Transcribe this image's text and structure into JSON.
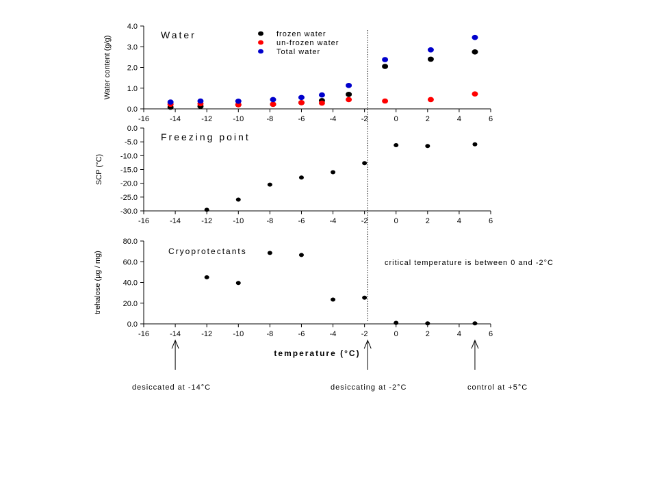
{
  "chart_data": [
    {
      "type": "scatter",
      "title": "Water",
      "ylabel": "Water content (g/g)",
      "xlim": [
        -16,
        6
      ],
      "ylim": [
        0,
        4
      ],
      "x_ticks": [
        "-16",
        "-14",
        "-12",
        "-10",
        "-8",
        "-6",
        "-4",
        "-2",
        "0",
        "2",
        "4",
        "6"
      ],
      "y_ticks": [
        "0.0",
        "1.0",
        "2.0",
        "3.0",
        "4.0"
      ],
      "legend_position": "top-center",
      "series": [
        {
          "name": "frozen water",
          "color": "#000000",
          "x": [
            -14.3,
            -12.4,
            -10,
            -7.8,
            -6,
            -4.7,
            -3,
            -0.7,
            2.2,
            5
          ],
          "y": [
            0.08,
            0.12,
            0.2,
            0.22,
            0.3,
            0.4,
            0.7,
            2.05,
            2.4,
            2.75
          ]
        },
        {
          "name": "un-frozen water",
          "color": "#ff0000",
          "x": [
            -14.3,
            -12.4,
            -10,
            -7.8,
            -6,
            -4.7,
            -3,
            -0.7,
            2.2,
            5
          ],
          "y": [
            0.22,
            0.25,
            0.2,
            0.22,
            0.3,
            0.28,
            0.45,
            0.38,
            0.45,
            0.72
          ]
        },
        {
          "name": "Total water",
          "color": "#0000cc",
          "x": [
            -14.3,
            -12.4,
            -10,
            -7.8,
            -6,
            -4.7,
            -3,
            -0.7,
            2.2,
            5
          ],
          "y": [
            0.33,
            0.38,
            0.37,
            0.45,
            0.55,
            0.67,
            1.13,
            2.38,
            2.85,
            3.45
          ]
        }
      ]
    },
    {
      "type": "scatter",
      "title": "Freezing point",
      "ylabel": "SCP (°C)",
      "xlim": [
        -16,
        6
      ],
      "ylim": [
        -30,
        0
      ],
      "x_ticks": [
        "-16",
        "-14",
        "-12",
        "-10",
        "-8",
        "-6",
        "-4",
        "-2",
        "0",
        "2",
        "4",
        "6"
      ],
      "y_ticks": [
        "-30.0",
        "-25.0",
        "-20.0",
        "-15.0",
        "-10.0",
        "-5.0",
        "0.0"
      ],
      "series": [
        {
          "color": "#000000",
          "x": [
            -12,
            -10,
            -8,
            -6,
            -4,
            -2,
            0,
            2,
            5
          ],
          "y": [
            -29.6,
            -25.9,
            -20.5,
            -17.9,
            -16,
            -12.7,
            -6.2,
            -6.5,
            -5.9
          ]
        }
      ]
    },
    {
      "type": "scatter",
      "title": "Cryoprotectants",
      "ylabel": "trehalose (µg / mg)",
      "xlabel": "temperature (°C)",
      "xlim": [
        -16,
        6
      ],
      "ylim": [
        0,
        80
      ],
      "x_ticks": [
        "-16",
        "-14",
        "-12",
        "-10",
        "-8",
        "-6",
        "-4",
        "-2",
        "0",
        "2",
        "4",
        "6"
      ],
      "y_ticks": [
        "0.0",
        "20.0",
        "40.0",
        "60.0",
        "80.0"
      ],
      "series": [
        {
          "color": "#000000",
          "x": [
            -12,
            -10,
            -8,
            -6,
            -4,
            -2,
            0,
            2,
            5
          ],
          "y": [
            45,
            39.5,
            68.5,
            66.5,
            23.5,
            25.3,
            1,
            0.5,
            0.5
          ]
        }
      ]
    }
  ],
  "annotations": {
    "critical_note": "critical temperature is between 0 and -2°C",
    "critical_x": -1.8,
    "arrows": [
      {
        "x": -14,
        "label": "desiccated at -14°C"
      },
      {
        "x": -1.8,
        "label": "desiccating at -2°C"
      },
      {
        "x": 5,
        "label": "control at +5°C"
      }
    ]
  }
}
